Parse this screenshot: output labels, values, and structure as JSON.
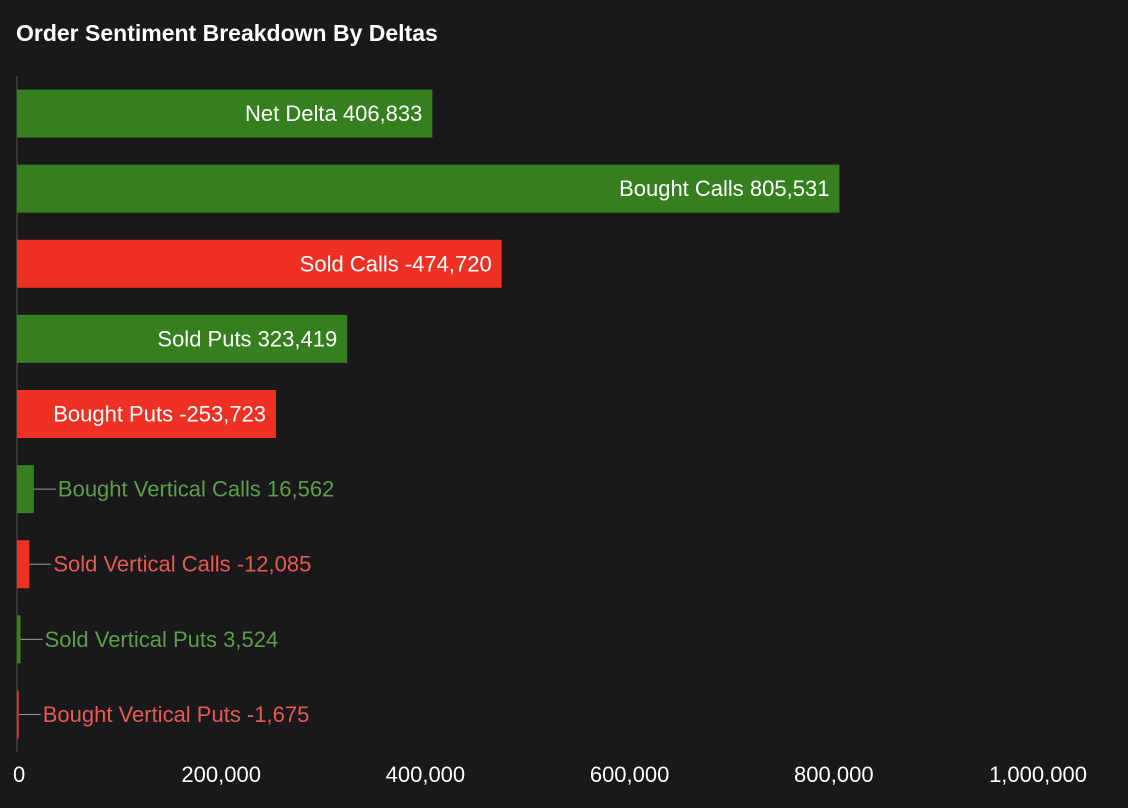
{
  "chart_data": {
    "type": "bar",
    "orientation": "horizontal",
    "title": "Order Sentiment Breakdown By Deltas",
    "xlim": [
      0,
      1000000
    ],
    "x_ticks": [
      "0",
      "200,000",
      "400,000",
      "600,000",
      "800,000",
      "1,000,000"
    ],
    "x_tick_values": [
      0,
      200000,
      400000,
      600000,
      800000,
      1000000
    ],
    "grid": false,
    "legend": "none",
    "bars": [
      {
        "label": "Net Delta 406,833",
        "value": 406833,
        "sign": "positive"
      },
      {
        "label": "Bought Calls 805,531",
        "value": 805531,
        "sign": "positive"
      },
      {
        "label": "Sold Calls -474,720",
        "value": 474720,
        "sign": "negative"
      },
      {
        "label": "Sold Puts 323,419",
        "value": 323419,
        "sign": "positive"
      },
      {
        "label": "Bought Puts -253,723",
        "value": 253723,
        "sign": "negative"
      },
      {
        "label": "Bought Vertical Calls 16,562",
        "value": 16562,
        "sign": "positive"
      },
      {
        "label": "Sold Vertical Calls -12,085",
        "value": 12085,
        "sign": "negative"
      },
      {
        "label": "Sold Vertical Puts 3,524",
        "value": 3524,
        "sign": "positive"
      },
      {
        "label": "Bought Vertical Puts -1,675",
        "value": 1675,
        "sign": "negative"
      }
    ],
    "colors": {
      "positive_bar": "#357f1f",
      "negative_bar": "#ef3124",
      "positive_text": "#5b9f48",
      "negative_text": "#e65a52",
      "inside_text": "#ffffff",
      "axis": "#555555",
      "background": "#19191b"
    }
  }
}
